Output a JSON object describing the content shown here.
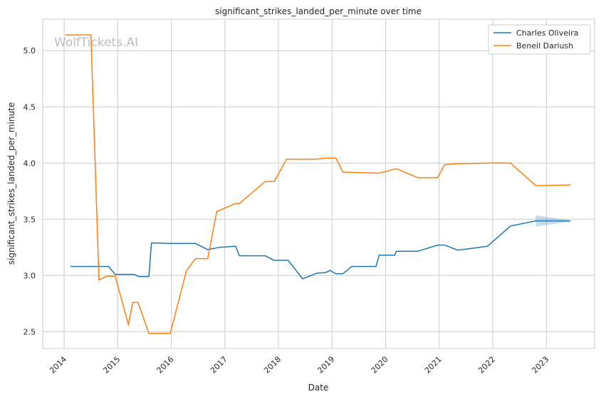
{
  "chart_data": {
    "type": "line",
    "title": "significant_strikes_landed_per_minute over time",
    "xlabel": "Date",
    "ylabel": "significant_strikes_landed_per_minute",
    "watermark": "WolfTickets.AI",
    "xlim": [
      2013.6,
      2023.9
    ],
    "ylim": [
      2.35,
      5.28
    ],
    "x_ticks": [
      2014,
      2015,
      2016,
      2017,
      2018,
      2019,
      2020,
      2021,
      2022,
      2023
    ],
    "x_tick_labels": [
      "2014",
      "2015",
      "2016",
      "2017",
      "2018",
      "2019",
      "2020",
      "2021",
      "2022",
      "2023"
    ],
    "y_ticks": [
      2.5,
      3.0,
      3.5,
      4.0,
      4.5,
      5.0
    ],
    "y_tick_labels": [
      "2.5",
      "3.0",
      "3.5",
      "4.0",
      "4.5",
      "5.0"
    ],
    "grid": true,
    "legend_position": "top-right",
    "series": [
      {
        "name": "Charles Oliveira",
        "color": "#1f77b4",
        "x": [
          2014.12,
          2014.3,
          2014.5,
          2014.7,
          2014.83,
          2014.95,
          2015.05,
          2015.3,
          2015.4,
          2015.58,
          2015.63,
          2016.0,
          2016.45,
          2016.68,
          2016.9,
          2017.2,
          2017.27,
          2017.75,
          2017.92,
          2018.18,
          2018.45,
          2018.72,
          2018.88,
          2018.96,
          2019.07,
          2019.2,
          2019.37,
          2019.55,
          2019.82,
          2019.88,
          2020.17,
          2020.2,
          2020.6,
          2020.97,
          2021.1,
          2021.35,
          2021.9,
          2022.33,
          2022.8,
          2023.45
        ],
        "y": [
          3.08,
          3.08,
          3.08,
          3.08,
          3.08,
          3.01,
          3.01,
          3.01,
          2.99,
          2.99,
          3.29,
          3.285,
          3.285,
          3.23,
          3.25,
          3.26,
          3.175,
          3.175,
          3.135,
          3.135,
          2.97,
          3.02,
          3.025,
          3.045,
          3.015,
          3.015,
          3.08,
          3.08,
          3.08,
          3.18,
          3.18,
          3.215,
          3.215,
          3.27,
          3.27,
          3.225,
          3.26,
          3.44,
          3.485,
          3.485
        ]
      },
      {
        "name": "Beneil Dariush",
        "color": "#ff7f0e",
        "x": [
          2014.02,
          2014.5,
          2014.65,
          2014.8,
          2014.95,
          2015.2,
          2015.28,
          2015.38,
          2015.58,
          2015.98,
          2016.28,
          2016.45,
          2016.68,
          2016.85,
          2017.2,
          2017.27,
          2017.75,
          2017.92,
          2018.15,
          2018.72,
          2018.88,
          2019.07,
          2019.2,
          2019.88,
          2020.2,
          2020.6,
          2020.97,
          2021.1,
          2021.35,
          2021.95,
          2022.33,
          2022.8,
          2023.45
        ],
        "y": [
          5.14,
          5.14,
          2.96,
          2.995,
          2.995,
          2.56,
          2.76,
          2.76,
          2.485,
          2.485,
          3.04,
          3.15,
          3.15,
          3.57,
          3.64,
          3.64,
          3.835,
          3.835,
          4.035,
          4.035,
          4.045,
          4.045,
          3.92,
          3.91,
          3.95,
          3.87,
          3.87,
          3.985,
          3.995,
          4.0,
          4.0,
          3.8,
          3.805
        ]
      }
    ]
  }
}
